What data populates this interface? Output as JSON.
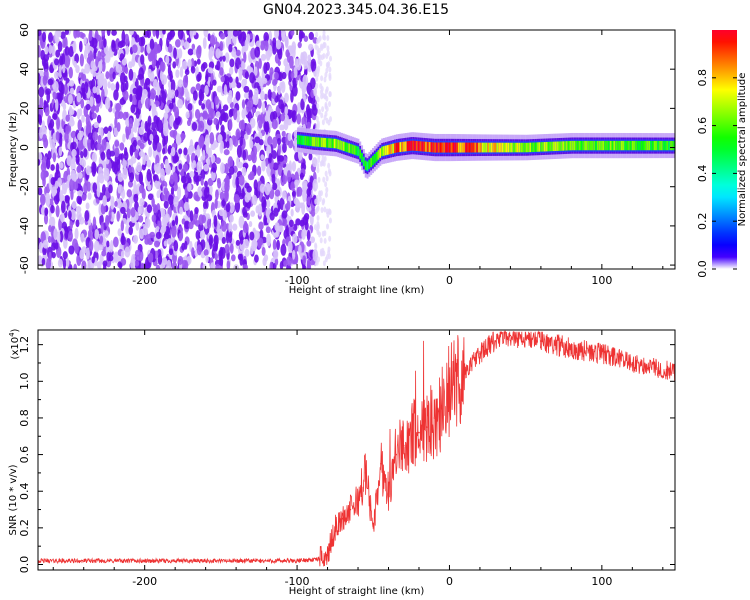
{
  "title": "GN04.2023.345.04.36.E15",
  "chart_data": [
    {
      "type": "heatmap",
      "xlabel": "Height of straight line (km)",
      "ylabel": "Frequency (Hz)",
      "xlim": [
        -270,
        148
      ],
      "ylim": [
        -62,
        60
      ],
      "xticks": [
        -200,
        -100,
        0,
        100
      ],
      "yticks": [
        -60,
        -40,
        -20,
        0,
        20,
        40,
        60
      ],
      "colorbar": {
        "label": "Normalized spectral amplitude",
        "range": [
          0,
          1
        ],
        "ticks": [
          0.0,
          0.2,
          0.4,
          0.6,
          0.8
        ],
        "colormap": "rainbow-violet-to-magenta"
      },
      "noise_region_x": [
        -270,
        -88
      ],
      "signal_band": [
        {
          "x": -100,
          "freq": 4,
          "amp": 0.45
        },
        {
          "x": -90,
          "freq": 3,
          "amp": 0.6
        },
        {
          "x": -75,
          "freq": 2,
          "amp": 0.65
        },
        {
          "x": -60,
          "freq": -2,
          "amp": 0.55
        },
        {
          "x": -55,
          "freq": -10,
          "amp": 0.5
        },
        {
          "x": -45,
          "freq": -2,
          "amp": 0.7
        },
        {
          "x": -35,
          "freq": 0,
          "amp": 0.85
        },
        {
          "x": -25,
          "freq": 1,
          "amp": 0.9
        },
        {
          "x": -10,
          "freq": 0,
          "amp": 0.95
        },
        {
          "x": 0,
          "freq": 0,
          "amp": 0.95
        },
        {
          "x": 20,
          "freq": 0,
          "amp": 0.8
        },
        {
          "x": 50,
          "freq": 0,
          "amp": 0.65
        },
        {
          "x": 80,
          "freq": 1,
          "amp": 0.6
        },
        {
          "x": 110,
          "freq": 1,
          "amp": 0.6
        },
        {
          "x": 148,
          "freq": 1,
          "amp": 0.55
        }
      ]
    },
    {
      "type": "line",
      "xlabel": "Height of straight line (km)",
      "ylabel": "SNR (10 * v/v)",
      "exponent_label": "(x10",
      "exponent_power": "4",
      "exponent_close": ")",
      "xlim": [
        -270,
        148
      ],
      "ylim": [
        -0.03,
        1.28
      ],
      "xticks": [
        -200,
        -100,
        0,
        100
      ],
      "yticks": [
        0.0,
        0.2,
        0.4,
        0.6,
        0.8,
        1.0,
        1.2
      ],
      "line_color": "#ee3333",
      "series": [
        {
          "x": [
            -270,
            -250,
            -200,
            -150,
            -100,
            -85,
            -80,
            -75,
            -70,
            -65,
            -60,
            -55,
            -50,
            -45,
            -40,
            -35,
            -30,
            -25,
            -20,
            -15,
            -10,
            -5,
            0,
            10,
            20,
            30,
            40,
            60,
            80,
            100,
            120,
            148
          ],
          "y": [
            0.02,
            0.02,
            0.02,
            0.02,
            0.02,
            0.03,
            0.05,
            0.2,
            0.25,
            0.3,
            0.35,
            0.5,
            0.2,
            0.55,
            0.4,
            0.6,
            0.65,
            0.7,
            0.72,
            0.75,
            0.8,
            0.85,
            0.95,
            1.05,
            1.15,
            1.22,
            1.25,
            1.22,
            1.18,
            1.15,
            1.1,
            1.05
          ]
        }
      ]
    }
  ]
}
